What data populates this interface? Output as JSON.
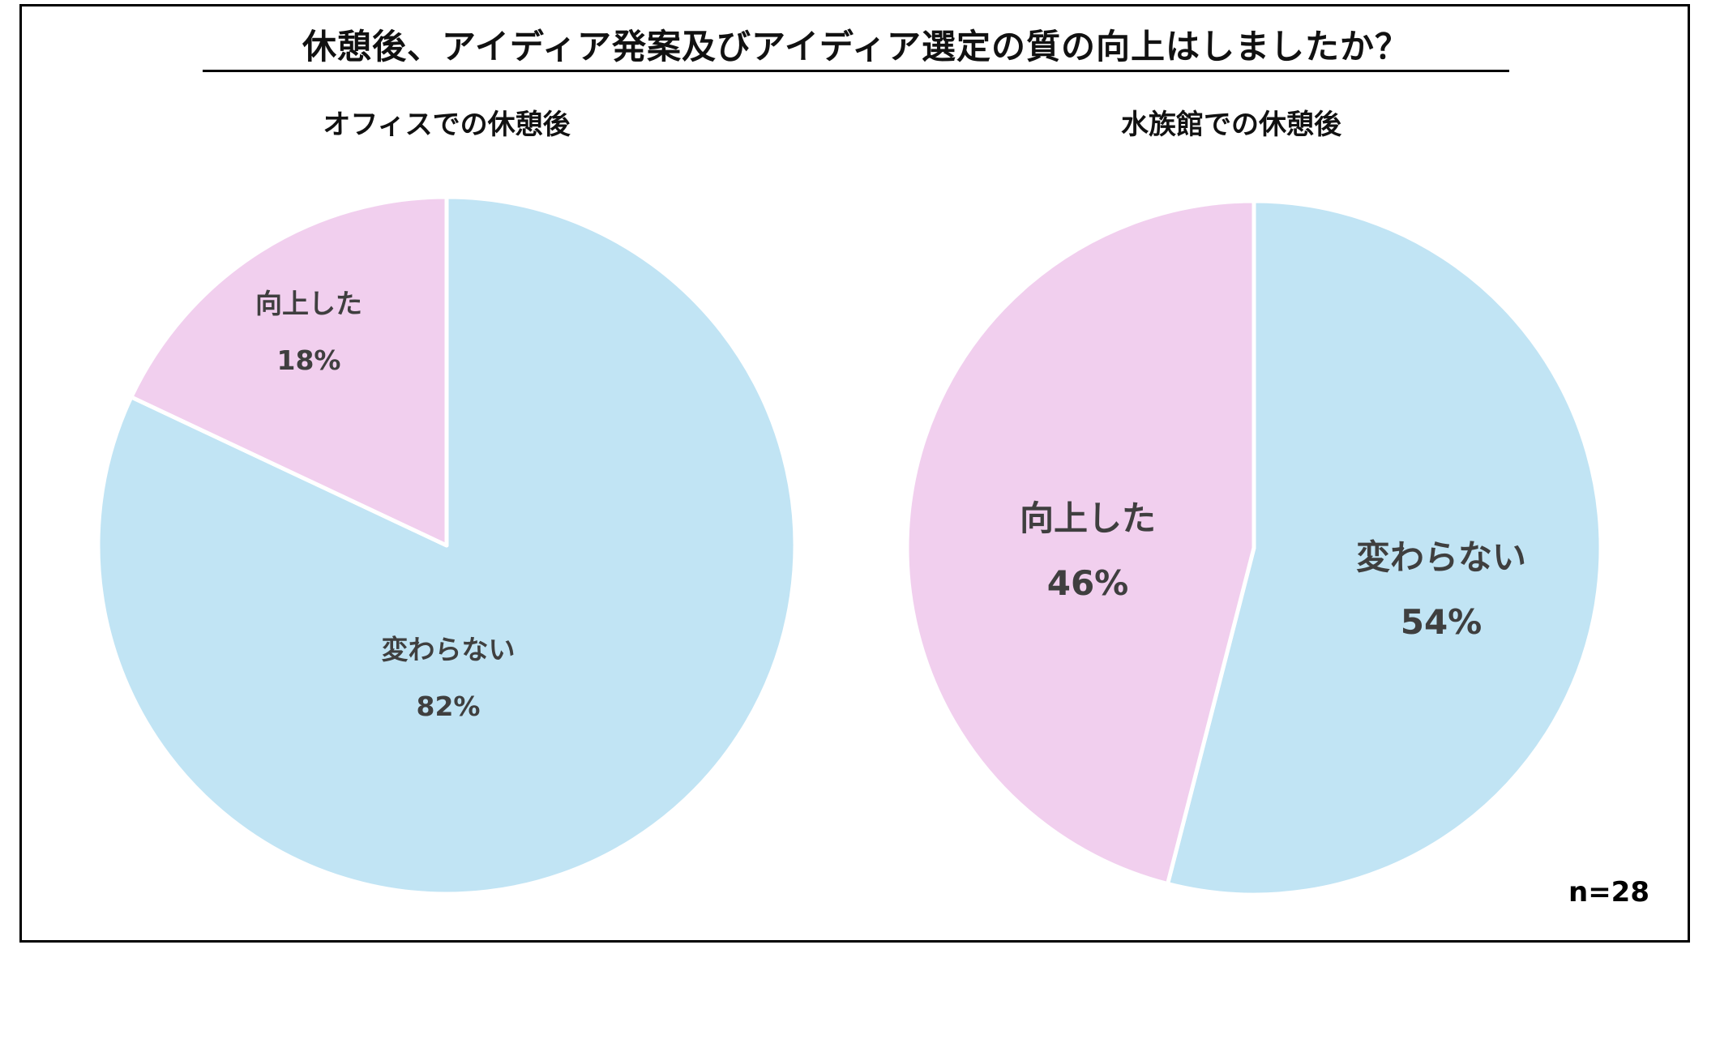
{
  "colors": {
    "improved": "#F1CFEE",
    "unchanged": "#C1E4F4",
    "separator": "#FFFFFF",
    "label_text": "#3F3F3F",
    "border": "#000000"
  },
  "title": "休憩後、アイディア発案及びアイディア選定の質の向上はしましたか？",
  "sample_size": "n=28",
  "charts": [
    {
      "subtitle": "オフィスでの休憩後",
      "slices": [
        {
          "label": "変わらない",
          "pct_label": "82%",
          "value": 82
        },
        {
          "label": "向上した",
          "pct_label": "18%",
          "value": 18
        }
      ]
    },
    {
      "subtitle": "水族館での休憩後",
      "slices": [
        {
          "label": "変わらない",
          "pct_label": "54%",
          "value": 54
        },
        {
          "label": "向上した",
          "pct_label": "46%",
          "value": 46
        }
      ]
    }
  ],
  "chart_data": [
    {
      "type": "pie",
      "title": "オフィスでの休憩後",
      "categories": [
        "変わらない",
        "向上した"
      ],
      "values": [
        82,
        18
      ],
      "unit": "%",
      "start_angle": "12 o'clock, clockwise",
      "colors": [
        "#C1E4F4",
        "#F1CFEE"
      ],
      "suptitle": "休憩後、アイディア発案及びアイディア選定の質の向上はしましたか？",
      "annotation": "n=28"
    },
    {
      "type": "pie",
      "title": "水族館での休憩後",
      "categories": [
        "変わらない",
        "向上した"
      ],
      "values": [
        54,
        46
      ],
      "unit": "%",
      "start_angle": "12 o'clock, clockwise",
      "colors": [
        "#C1E4F4",
        "#F1CFEE"
      ],
      "suptitle": "休憩後、アイディア発案及びアイディア選定の質の向上はしましたか？",
      "annotation": "n=28"
    }
  ]
}
